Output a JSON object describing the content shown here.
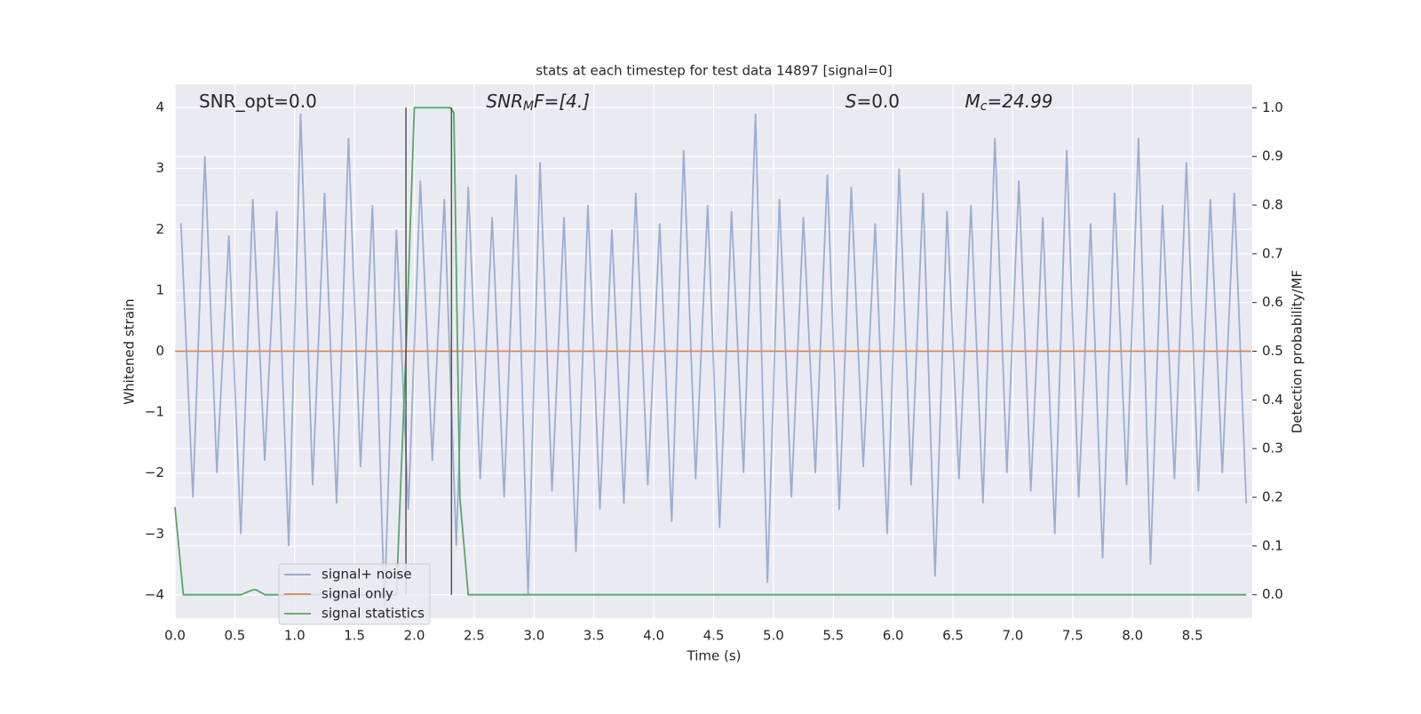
{
  "chart_data": {
    "type": "line",
    "title": "stats at each timestep for test data 14897 [signal=0]",
    "xlabel": "Time (s)",
    "ylabel": "Whitened strain",
    "y2label": "Detection probability/MF",
    "xlim": [
      0,
      9.0
    ],
    "ylim": [
      -4.38,
      4.38
    ],
    "y2lim": [
      -0.048,
      1.048
    ],
    "grid": true,
    "xticks": [
      {
        "value": 0,
        "label": "0.0"
      },
      {
        "value": 0.5,
        "label": "0.5"
      },
      {
        "value": 1,
        "label": "1.0"
      },
      {
        "value": 1.5,
        "label": "1.5"
      },
      {
        "value": 2,
        "label": "2.0"
      },
      {
        "value": 2.5,
        "label": "2.5"
      },
      {
        "value": 3,
        "label": "3.0"
      },
      {
        "value": 3.5,
        "label": "3.5"
      },
      {
        "value": 4,
        "label": "4.0"
      },
      {
        "value": 4.5,
        "label": "4.5"
      },
      {
        "value": 5,
        "label": "5.0"
      },
      {
        "value": 5.5,
        "label": "5.5"
      },
      {
        "value": 6,
        "label": "6.0"
      },
      {
        "value": 6.5,
        "label": "6.5"
      },
      {
        "value": 7,
        "label": "7.0"
      },
      {
        "value": 7.5,
        "label": "7.5"
      },
      {
        "value": 8,
        "label": "8.0"
      },
      {
        "value": 8.5,
        "label": "8.5"
      }
    ],
    "yticks": [
      4,
      3,
      2,
      1,
      0,
      {
        "value": -1,
        "label": "−1"
      },
      {
        "value": -2,
        "label": "−2"
      },
      {
        "value": -3,
        "label": "−3"
      },
      {
        "value": -4,
        "label": "−4"
      }
    ],
    "y2ticks": [
      {
        "value": 0,
        "label": "0.0"
      },
      {
        "value": 0.1,
        "label": "0.1"
      },
      {
        "value": 0.2,
        "label": "0.2"
      },
      {
        "value": 0.3,
        "label": "0.3"
      },
      {
        "value": 0.4,
        "label": "0.4"
      },
      {
        "value": 0.5,
        "label": "0.5"
      },
      {
        "value": 0.6,
        "label": "0.6"
      },
      {
        "value": 0.7,
        "label": "0.7"
      },
      {
        "value": 0.8,
        "label": "0.8"
      },
      {
        "value": 0.9,
        "label": "0.9"
      },
      {
        "value": 1,
        "label": "1.0"
      }
    ],
    "series": [
      {
        "name": "signal+ noise",
        "color": "#4c72b0",
        "opacity": 0.5,
        "x": [
          0.05,
          0.15,
          0.25,
          0.35,
          0.45,
          0.55,
          0.65,
          0.75,
          0.85,
          0.95,
          1.05,
          1.15,
          1.25,
          1.35,
          1.45,
          1.55,
          1.65,
          1.75,
          1.85,
          1.95,
          2.05,
          2.15,
          2.25,
          2.35,
          2.45,
          2.55,
          2.65,
          2.75,
          2.85,
          2.95,
          3.05,
          3.15,
          3.25,
          3.35,
          3.45,
          3.55,
          3.65,
          3.75,
          3.85,
          3.95,
          4.05,
          4.15,
          4.25,
          4.35,
          4.45,
          4.55,
          4.65,
          4.75,
          4.85,
          4.95,
          5.05,
          5.15,
          5.25,
          5.35,
          5.45,
          5.55,
          5.65,
          5.75,
          5.85,
          5.95,
          6.05,
          6.15,
          6.25,
          6.35,
          6.45,
          6.55,
          6.65,
          6.75,
          6.85,
          6.95,
          7.05,
          7.15,
          7.25,
          7.35,
          7.45,
          7.55,
          7.65,
          7.75,
          7.85,
          7.95,
          8.05,
          8.15,
          8.25,
          8.35,
          8.45,
          8.55,
          8.65,
          8.75,
          8.85,
          8.95
        ],
        "values": [
          2.1,
          -2.4,
          3.2,
          -2.0,
          1.9,
          -3.0,
          2.5,
          -1.8,
          2.3,
          -3.2,
          3.9,
          -2.2,
          2.6,
          -2.5,
          3.5,
          -1.9,
          2.4,
          -4.2,
          2.0,
          -2.6,
          2.8,
          -1.8,
          2.5,
          -3.2,
          2.7,
          -2.1,
          2.2,
          -2.4,
          2.9,
          -4.0,
          3.1,
          -2.3,
          2.2,
          -3.3,
          2.4,
          -2.6,
          2.0,
          -2.5,
          2.6,
          -2.2,
          2.1,
          -2.8,
          3.3,
          -2.1,
          2.4,
          -2.9,
          2.3,
          -2.0,
          3.9,
          -3.8,
          2.5,
          -2.4,
          2.2,
          -2.0,
          2.9,
          -2.6,
          2.7,
          -1.9,
          2.1,
          -3.0,
          3.0,
          -2.2,
          2.6,
          -3.7,
          2.3,
          -2.1,
          2.4,
          -2.5,
          3.5,
          -2.0,
          2.8,
          -2.3,
          2.2,
          -3.0,
          3.3,
          -2.4,
          2.1,
          -3.4,
          2.6,
          -2.2,
          3.5,
          -3.5,
          2.4,
          -2.1,
          3.1,
          -2.3,
          2.5,
          -2.0,
          2.6,
          -2.5
        ]
      },
      {
        "name": "signal only",
        "color": "#dd8452",
        "x": [
          0,
          8.99
        ],
        "values": [
          0,
          0
        ]
      },
      {
        "name": "signal statistics",
        "color": "#55a868",
        "axis": "y2",
        "x": [
          0,
          0.07,
          0.55,
          0.65,
          0.68,
          0.75,
          1.85,
          1.93,
          2.0,
          2.1,
          2.3,
          2.33,
          2.38,
          2.45,
          8.95
        ],
        "values": [
          0.18,
          0.0,
          0.0,
          0.01,
          0.01,
          0.0,
          0.0,
          0.5,
          1.0,
          1.0,
          1.0,
          0.99,
          0.2,
          0.0,
          0.0
        ]
      }
    ],
    "vlines": {
      "x": [
        1.93,
        2.31
      ],
      "ymin": -4,
      "ymax": 4,
      "color": "#555555"
    },
    "annotations": [
      {
        "x": 0.2,
        "text": "SNR_opt=0.0"
      },
      {
        "x": 2.6,
        "text": "SNR",
        "sub": "M",
        "rest": "F=[4.]"
      },
      {
        "x": 5.6,
        "text": "S",
        "rest": "=0.0"
      },
      {
        "x": 6.6,
        "text": "M",
        "sub": "c",
        "rest": "=24.99"
      }
    ]
  }
}
